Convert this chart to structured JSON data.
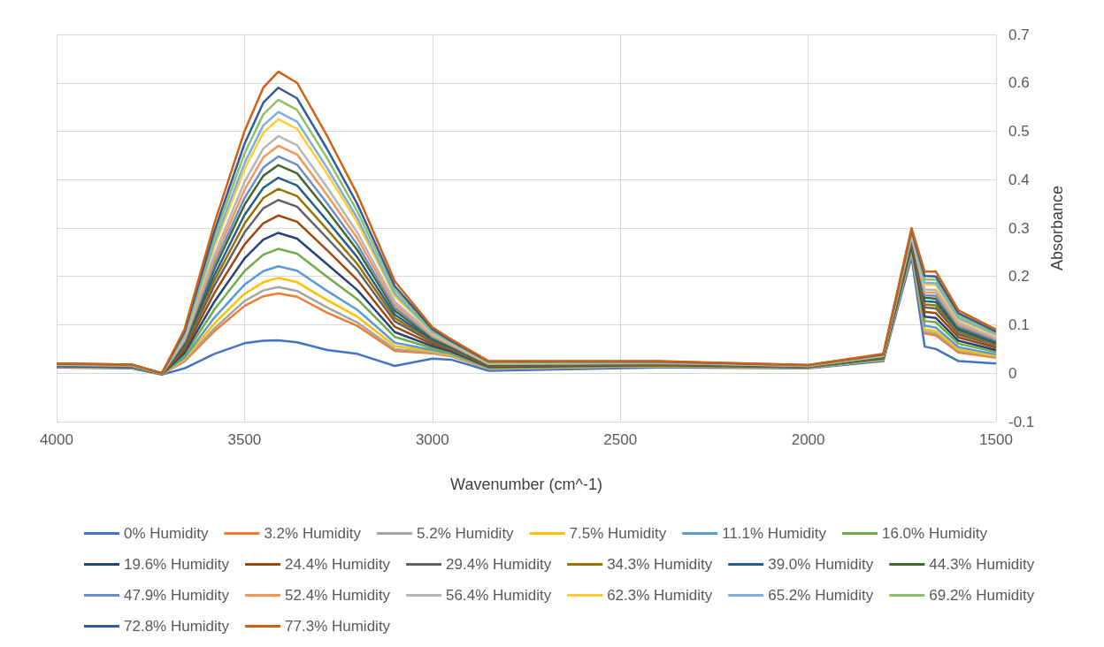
{
  "chart_data": {
    "type": "line",
    "xlabel": "Wavenumber (cm^-1)",
    "ylabel": "Absorbance",
    "x": [
      4000,
      3800,
      3720,
      3660,
      3580,
      3500,
      3450,
      3410,
      3360,
      3280,
      3200,
      3100,
      3000,
      2950,
      2850,
      2400,
      2000,
      1800,
      1725,
      1690,
      1660,
      1600,
      1500
    ],
    "series": [
      {
        "name": "0% Humidity",
        "color": "#4472c4",
        "values": [
          0.012,
          0.01,
          -0.003,
          0.01,
          0.04,
          0.062,
          0.067,
          0.068,
          0.064,
          0.048,
          0.04,
          0.015,
          0.03,
          0.028,
          0.005,
          0.012,
          0.01,
          0.025,
          0.24,
          0.055,
          0.05,
          0.025,
          0.02
        ]
      },
      {
        "name": "3.2% Humidity",
        "color": "#ed7d31",
        "values": [
          0.013,
          0.011,
          -0.002,
          0.024,
          0.087,
          0.139,
          0.159,
          0.165,
          0.158,
          0.125,
          0.098,
          0.046,
          0.041,
          0.035,
          0.009,
          0.014,
          0.011,
          0.028,
          0.25,
          0.082,
          0.078,
          0.043,
          0.032
        ]
      },
      {
        "name": "5.2% Humidity",
        "color": "#a5a5a5",
        "values": [
          0.014,
          0.012,
          -0.002,
          0.026,
          0.093,
          0.149,
          0.171,
          0.178,
          0.17,
          0.136,
          0.105,
          0.05,
          0.043,
          0.036,
          0.009,
          0.015,
          0.011,
          0.028,
          0.252,
          0.086,
          0.082,
          0.046,
          0.034
        ]
      },
      {
        "name": "7.5% Humidity",
        "color": "#ffc000",
        "values": [
          0.014,
          0.012,
          -0.002,
          0.029,
          0.103,
          0.164,
          0.188,
          0.197,
          0.188,
          0.151,
          0.117,
          0.056,
          0.045,
          0.038,
          0.01,
          0.015,
          0.012,
          0.028,
          0.254,
          0.091,
          0.087,
          0.049,
          0.036
        ]
      },
      {
        "name": "11.1% Humidity",
        "color": "#5b9bd5",
        "values": [
          0.014,
          0.012,
          -0.002,
          0.032,
          0.115,
          0.183,
          0.211,
          0.221,
          0.212,
          0.17,
          0.131,
          0.063,
          0.048,
          0.04,
          0.011,
          0.016,
          0.012,
          0.029,
          0.257,
          0.098,
          0.094,
          0.054,
          0.039
        ]
      },
      {
        "name": "16.0% Humidity",
        "color": "#70ad47",
        "values": [
          0.015,
          0.013,
          -0.002,
          0.037,
          0.132,
          0.211,
          0.245,
          0.257,
          0.247,
          0.199,
          0.153,
          0.075,
          0.052,
          0.042,
          0.012,
          0.016,
          0.012,
          0.03,
          0.26,
          0.108,
          0.105,
          0.061,
          0.044
        ]
      },
      {
        "name": "19.6% Humidity",
        "color": "#264478",
        "values": [
          0.015,
          0.013,
          -0.002,
          0.042,
          0.148,
          0.237,
          0.276,
          0.29,
          0.278,
          0.225,
          0.172,
          0.085,
          0.056,
          0.045,
          0.013,
          0.017,
          0.013,
          0.031,
          0.264,
          0.117,
          0.114,
          0.067,
          0.048
        ]
      },
      {
        "name": "24.4% Humidity",
        "color": "#9e480e",
        "values": [
          0.016,
          0.014,
          -0.002,
          0.047,
          0.166,
          0.266,
          0.31,
          0.326,
          0.313,
          0.254,
          0.193,
          0.096,
          0.06,
          0.048,
          0.014,
          0.018,
          0.013,
          0.032,
          0.268,
          0.127,
          0.124,
          0.074,
          0.053
        ]
      },
      {
        "name": "29.4% Humidity",
        "color": "#636363",
        "values": [
          0.016,
          0.014,
          -0.001,
          0.052,
          0.181,
          0.291,
          0.341,
          0.358,
          0.344,
          0.279,
          0.213,
          0.107,
          0.064,
          0.05,
          0.015,
          0.019,
          0.014,
          0.033,
          0.271,
          0.136,
          0.134,
          0.08,
          0.057
        ]
      },
      {
        "name": "34.3% Humidity",
        "color": "#997300",
        "values": [
          0.017,
          0.015,
          -0.001,
          0.055,
          0.192,
          0.309,
          0.362,
          0.381,
          0.366,
          0.297,
          0.226,
          0.114,
          0.067,
          0.052,
          0.016,
          0.019,
          0.014,
          0.033,
          0.274,
          0.142,
          0.14,
          0.084,
          0.059
        ]
      },
      {
        "name": "39.0% Humidity",
        "color": "#255e91",
        "values": [
          0.017,
          0.015,
          -0.001,
          0.058,
          0.203,
          0.327,
          0.383,
          0.404,
          0.388,
          0.315,
          0.24,
          0.121,
          0.069,
          0.053,
          0.017,
          0.02,
          0.014,
          0.034,
          0.276,
          0.149,
          0.147,
          0.089,
          0.062
        ]
      },
      {
        "name": "44.3% Humidity",
        "color": "#43682b",
        "values": [
          0.017,
          0.015,
          -0.001,
          0.062,
          0.216,
          0.348,
          0.408,
          0.43,
          0.413,
          0.336,
          0.255,
          0.129,
          0.072,
          0.055,
          0.018,
          0.02,
          0.015,
          0.035,
          0.279,
          0.156,
          0.154,
          0.093,
          0.066
        ]
      },
      {
        "name": "47.9% Humidity",
        "color": "#698ed0",
        "values": [
          0.017,
          0.015,
          -0.001,
          0.065,
          0.225,
          0.362,
          0.425,
          0.448,
          0.431,
          0.351,
          0.266,
          0.135,
          0.075,
          0.057,
          0.019,
          0.021,
          0.015,
          0.035,
          0.281,
          0.161,
          0.16,
          0.097,
          0.068
        ]
      },
      {
        "name": "52.4% Humidity",
        "color": "#f1975a",
        "values": [
          0.018,
          0.016,
          -0.001,
          0.068,
          0.235,
          0.379,
          0.446,
          0.47,
          0.452,
          0.368,
          0.279,
          0.142,
          0.077,
          0.058,
          0.019,
          0.021,
          0.015,
          0.036,
          0.283,
          0.167,
          0.166,
          0.101,
          0.071
        ]
      },
      {
        "name": "56.4% Humidity",
        "color": "#b7b7b7",
        "values": [
          0.018,
          0.016,
          -0.001,
          0.071,
          0.245,
          0.395,
          0.464,
          0.49,
          0.471,
          0.384,
          0.291,
          0.148,
          0.079,
          0.06,
          0.02,
          0.022,
          0.015,
          0.036,
          0.286,
          0.173,
          0.172,
          0.105,
          0.073
        ]
      },
      {
        "name": "62.3% Humidity",
        "color": "#ffcd33",
        "values": [
          null,
          null,
          -0.001,
          0.076,
          0.262,
          0.422,
          0.497,
          0.525,
          0.505,
          0.412,
          0.312,
          0.159,
          0.083,
          0.063,
          0.021,
          0.023,
          0.016,
          0.037,
          0.289,
          0.183,
          0.182,
          0.111,
          0.078
        ]
      },
      {
        "name": "65.2% Humidity",
        "color": "#7cafdd",
        "values": [
          0.019,
          0.017,
          -0.001,
          0.078,
          0.27,
          0.434,
          0.512,
          0.54,
          0.52,
          0.424,
          0.321,
          0.164,
          0.085,
          0.064,
          0.022,
          0.023,
          0.016,
          0.038,
          0.291,
          0.187,
          0.186,
          0.114,
          0.08
        ]
      },
      {
        "name": "69.2% Humidity",
        "color": "#8cc168",
        "values": [
          0.019,
          0.017,
          -0.001,
          0.082,
          0.282,
          0.454,
          0.535,
          0.565,
          0.544,
          0.444,
          0.335,
          0.172,
          0.088,
          0.066,
          0.023,
          0.024,
          0.016,
          0.038,
          0.294,
          0.194,
          0.193,
          0.119,
          0.083
        ]
      },
      {
        "name": "72.8% Humidity",
        "color": "#335aa1",
        "values": [
          0.02,
          0.018,
          0,
          0.085,
          0.294,
          0.474,
          0.559,
          0.59,
          0.568,
          0.463,
          0.35,
          0.18,
          0.091,
          0.067,
          0.024,
          0.024,
          0.017,
          0.039,
          0.296,
          0.201,
          0.2,
          0.124,
          0.086
        ]
      },
      {
        "name": "77.3% Humidity",
        "color": "#d26012",
        "values": [
          0.02,
          0.018,
          0,
          0.09,
          0.31,
          0.5,
          0.59,
          0.623,
          0.6,
          0.49,
          0.37,
          0.19,
          0.095,
          0.07,
          0.025,
          0.025,
          0.017,
          0.04,
          0.3,
          0.21,
          0.21,
          0.13,
          0.09
        ]
      }
    ],
    "xlim": [
      4000,
      1500
    ],
    "xticks": [
      4000,
      3500,
      3000,
      2500,
      2000,
      1500
    ],
    "ylim": [
      -0.1,
      0.7
    ],
    "yticks": [
      -0.1,
      0,
      0.1,
      0.2,
      0.3,
      0.4,
      0.5,
      0.6,
      0.7
    ],
    "grid": true,
    "legend": "bottom",
    "marker": "none"
  }
}
